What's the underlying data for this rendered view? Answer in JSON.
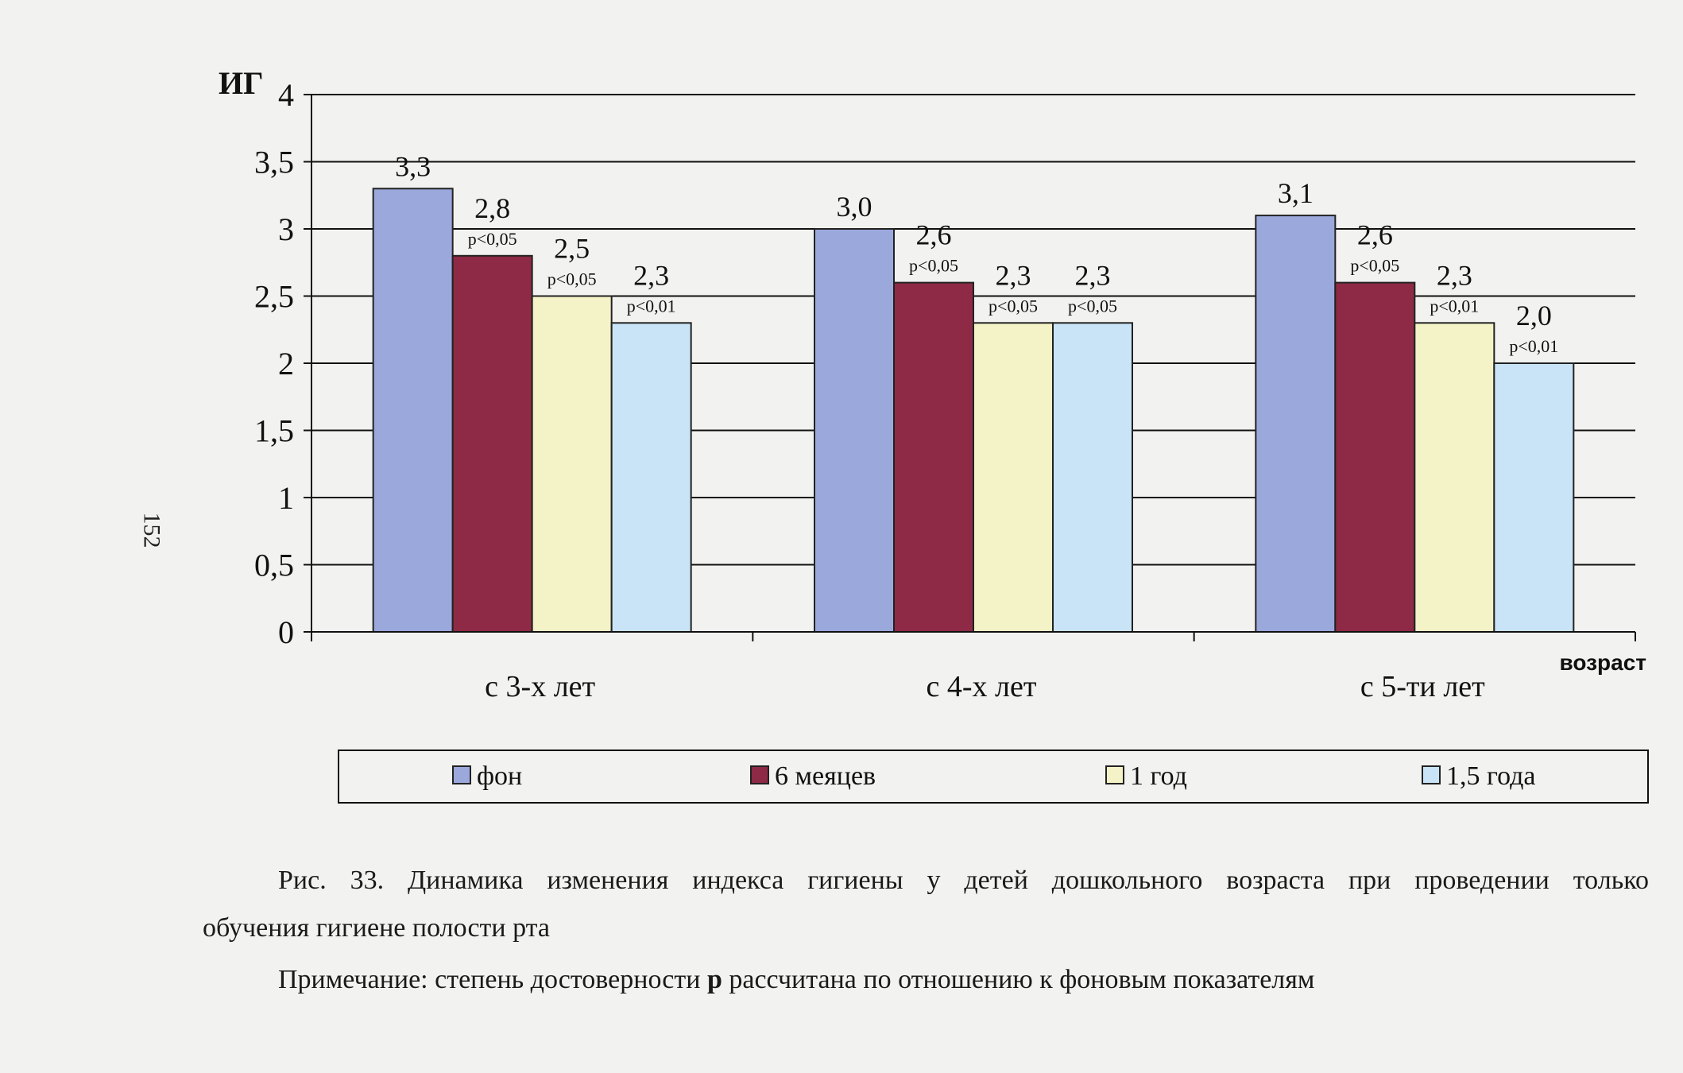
{
  "page_number": "152",
  "chart_data": {
    "type": "bar",
    "title": "",
    "ylabel": "ИГ",
    "xlabel": "возраст",
    "ylim": [
      0,
      4
    ],
    "y_ticks": [
      "0",
      "0,5",
      "1",
      "1,5",
      "2",
      "2,5",
      "3",
      "3,5",
      "4"
    ],
    "grid": true,
    "legend_position": "bottom",
    "categories": [
      "с 3-х лет",
      "с 4-х лет",
      "с 5-ти лет"
    ],
    "series": [
      {
        "name": "фон",
        "color": "#9ba8dc",
        "values": [
          3.3,
          3.0,
          3.1
        ],
        "labels": [
          "3,3",
          "3,0",
          "3,1"
        ],
        "p": [
          "",
          "",
          ""
        ]
      },
      {
        "name": "6 меяцев",
        "color": "#8e2a45",
        "values": [
          2.8,
          2.6,
          2.6
        ],
        "labels": [
          "2,8",
          "2,6",
          "2,6"
        ],
        "p": [
          "p<0,05",
          "p<0,05",
          "p<0,05"
        ]
      },
      {
        "name": "1 год",
        "color": "#f4f3c8",
        "values": [
          2.5,
          2.3,
          2.3
        ],
        "labels": [
          "2,5",
          "2,3",
          "2,3"
        ],
        "p": [
          "p<0,05",
          "p<0,05",
          "p<0,01"
        ]
      },
      {
        "name": "1,5 года",
        "color": "#c9e4f6",
        "values": [
          2.3,
          2.3,
          2.0
        ],
        "labels": [
          "2,3",
          "2,3",
          "2,0"
        ],
        "p": [
          "p<0,01",
          "p<0,05",
          "p<0,01"
        ]
      }
    ]
  },
  "caption": {
    "line1": "Рис. 33. Динамика изменения индекса гигиены у детей дошкольного возраста при проведении только",
    "line2": "обучения гигиене полости рта",
    "note_before": "Примечание: степень достоверности ",
    "note_bold": "р",
    "note_after": " рассчитана по отношению к фоновым показателям"
  }
}
